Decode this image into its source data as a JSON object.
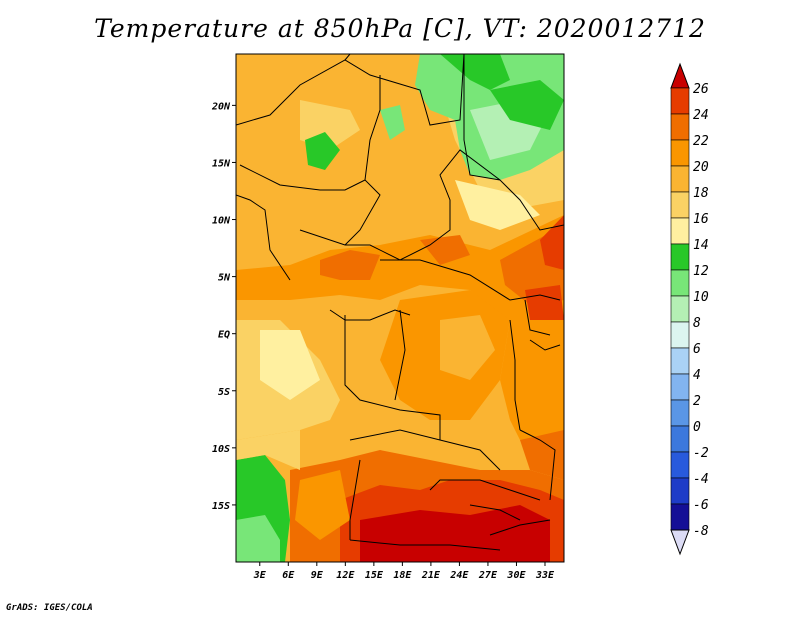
{
  "title": "Temperature at 850hPa [C], VT: 2020012712",
  "footer": "GrADS: IGES/COLA",
  "map": {
    "lat_labels": [
      "20N",
      "15N",
      "10N",
      "5N",
      "EQ",
      "5S",
      "10S",
      "15S"
    ],
    "lat_values": [
      20,
      15,
      10,
      5,
      0,
      -5,
      -10,
      -15
    ],
    "lon_labels": [
      "3E",
      "6E",
      "9E",
      "12E",
      "15E",
      "18E",
      "21E",
      "24E",
      "27E",
      "30E",
      "33E"
    ],
    "lon_values": [
      3,
      6,
      9,
      12,
      15,
      18,
      21,
      24,
      27,
      30,
      33
    ],
    "lon_range": [
      0.5,
      35
    ],
    "lat_range": [
      -20,
      24.5
    ]
  },
  "colorbar": {
    "levels": [
      "26",
      "24",
      "22",
      "20",
      "18",
      "16",
      "14",
      "12",
      "10",
      "8",
      "6",
      "4",
      "2",
      "0",
      "-2",
      "-4",
      "-6",
      "-8"
    ],
    "colors": [
      "#c80000",
      "#e63c00",
      "#f06e00",
      "#fa9600",
      "#fab432",
      "#fad264",
      "#fff0a0",
      "#28c828",
      "#78e678",
      "#b4f0b4",
      "#dcf5f0",
      "#aad2f5",
      "#82b4f0",
      "#5a96e6",
      "#3c78dc",
      "#285adc",
      "#1e3cc8",
      "#140f96",
      "#0a0a64"
    ],
    "top_cap_color": "#c80000",
    "bottom_cap_color": "#dcdcf5"
  }
}
